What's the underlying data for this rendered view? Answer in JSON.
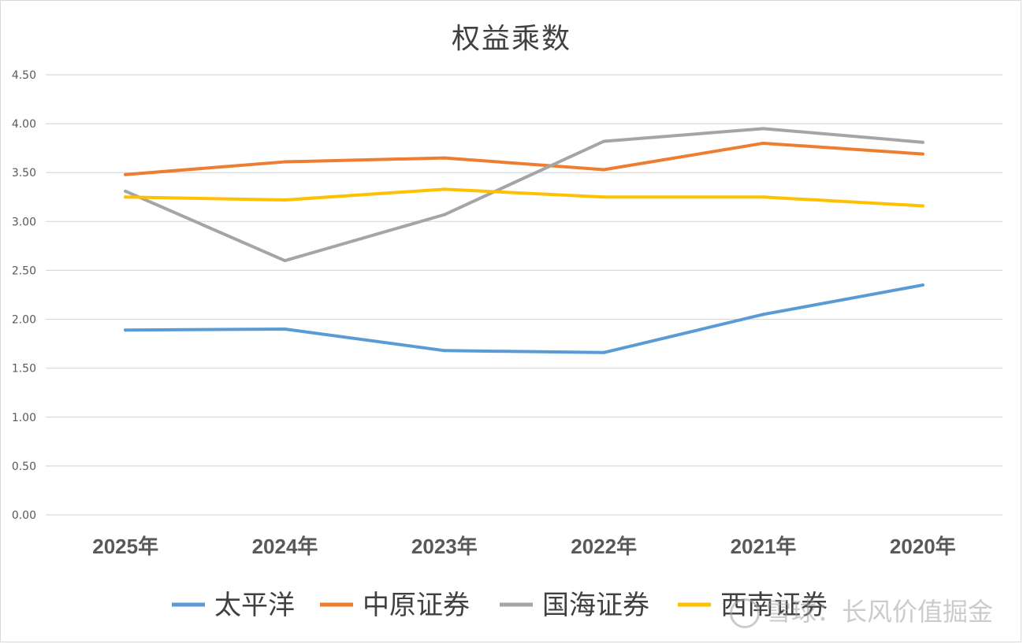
{
  "chart_data": {
    "type": "line",
    "title": "权益乘数",
    "categories": [
      "2025年",
      "2024年",
      "2023年",
      "2022年",
      "2021年",
      "2020年"
    ],
    "ylim": [
      0,
      4.5
    ],
    "yticks": [
      "0.00",
      "0.50",
      "1.00",
      "1.50",
      "2.00",
      "2.50",
      "3.00",
      "3.50",
      "4.00",
      "4.50"
    ],
    "grid": true,
    "legend_position": "bottom",
    "series": [
      {
        "name": "太平洋",
        "color": "#5b9bd5",
        "values": [
          1.89,
          1.9,
          1.68,
          1.66,
          2.05,
          2.35
        ]
      },
      {
        "name": "中原证券",
        "color": "#ed7d31",
        "values": [
          3.48,
          3.61,
          3.65,
          3.53,
          3.8,
          3.69
        ]
      },
      {
        "name": "国海证券",
        "color": "#a5a5a5",
        "values": [
          3.31,
          2.6,
          3.07,
          3.82,
          3.95,
          3.81
        ]
      },
      {
        "name": "西南证券",
        "color": "#ffc000",
        "values": [
          3.25,
          3.22,
          3.33,
          3.25,
          3.25,
          3.16
        ]
      }
    ]
  },
  "watermark": {
    "text": "雪球：长风价值掘金",
    "icon": "snowball-logo-icon"
  }
}
